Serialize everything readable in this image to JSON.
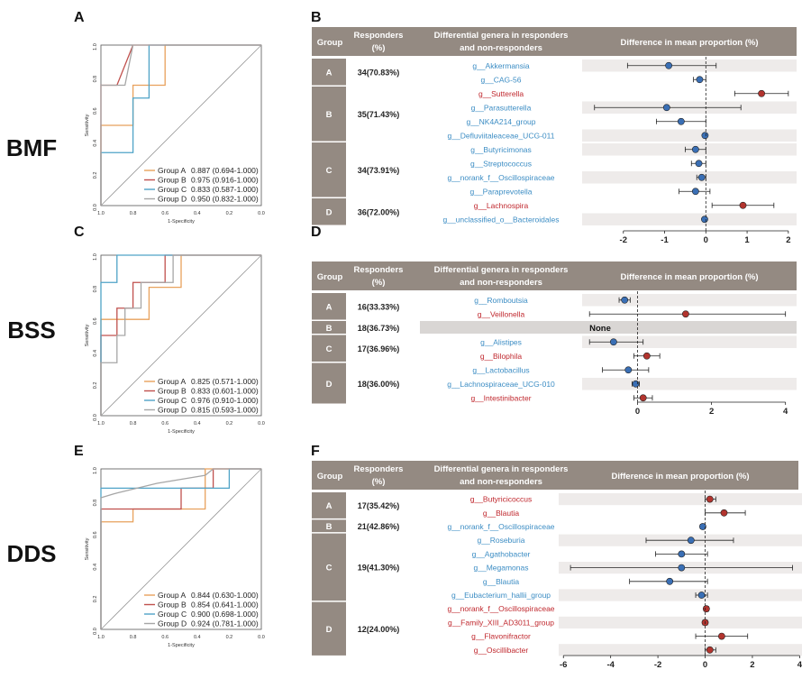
{
  "sections": [
    {
      "label": "BMF",
      "roc_letter": "A",
      "table_letter": "B",
      "roc": {
        "ylabel": "Sensitivity",
        "xlabel": "1-Specificity",
        "ticks": [
          "1.0",
          "0.8",
          "0.6",
          "0.4",
          "0.2",
          "0.0"
        ],
        "legend": [
          {
            "name": "Group A",
            "auc": "0.887 (0.694-1.000)",
            "color": "#E8A15C"
          },
          {
            "name": "Group B",
            "auc": "0.975 (0.916-1.000)",
            "color": "#C0504D"
          },
          {
            "name": "Group C",
            "auc": "0.833 (0.587-1.000)",
            "color": "#4FA3C7"
          },
          {
            "name": "Group D",
            "auc": "0.950 (0.832-1.000)",
            "color": "#A6A6A6"
          }
        ]
      },
      "table": {
        "headers": {
          "group": "Group",
          "responders_1": "Responders",
          "responders_2": "(%)",
          "genera_1": "Differential genera in responders",
          "genera_2": "and non-responders",
          "diff": "Difference in mean proportion (%)"
        },
        "groups": [
          {
            "name": "A",
            "responders": "34(70.83%)",
            "rows": [
              {
                "genus": "g__Akkermansia",
                "color": "blue",
                "est": -0.9,
                "lo": -1.9,
                "hi": 0.25
              },
              {
                "genus": "g__CAG-56",
                "color": "blue",
                "est": -0.15,
                "lo": -0.3,
                "hi": 0.0
              }
            ]
          },
          {
            "name": "B",
            "responders": "35(71.43%)",
            "rows": [
              {
                "genus": "g__Sutterella",
                "color": "red",
                "est": 1.35,
                "lo": 0.7,
                "hi": 2.0
              },
              {
                "genus": "g__Parasutterella",
                "color": "blue",
                "est": -0.95,
                "lo": -2.7,
                "hi": 0.85
              },
              {
                "genus": "g__NK4A214_group",
                "color": "blue",
                "est": -0.6,
                "lo": -1.2,
                "hi": 0.0
              },
              {
                "genus": "g__Defluviitaleaceae_UCG-011",
                "color": "blue",
                "est": -0.02,
                "lo": -0.06,
                "hi": 0.02
              }
            ]
          },
          {
            "name": "C",
            "responders": "34(73.91%)",
            "rows": [
              {
                "genus": "g__Butyricimonas",
                "color": "blue",
                "est": -0.25,
                "lo": -0.5,
                "hi": 0.0
              },
              {
                "genus": "g__Streptococcus",
                "color": "blue",
                "est": -0.17,
                "lo": -0.35,
                "hi": 0.0
              },
              {
                "genus": "g__norank_f__Oscillospiraceae",
                "color": "blue",
                "est": -0.1,
                "lo": -0.22,
                "hi": 0.0
              },
              {
                "genus": "g__Paraprevotella",
                "color": "blue",
                "est": -0.25,
                "lo": -0.65,
                "hi": 0.1
              }
            ]
          },
          {
            "name": "D",
            "responders": "36(72.00%)",
            "rows": [
              {
                "genus": "g__Lachnospira",
                "color": "red",
                "est": 0.9,
                "lo": 0.15,
                "hi": 1.65
              },
              {
                "genus": "g__unclassified_o__Bacteroidales",
                "color": "blue",
                "est": -0.03,
                "lo": -0.07,
                "hi": 0.01
              }
            ]
          }
        ],
        "x_ticks": [
          "-2",
          "-1",
          "0",
          "1",
          "2"
        ],
        "x_tick_values": [
          -2,
          -1,
          0,
          1,
          2
        ],
        "xlim": [
          -3,
          2.2
        ]
      }
    },
    {
      "label": "BSS",
      "roc_letter": "C",
      "table_letter": "D",
      "roc": {
        "ylabel": "Sensitivity",
        "xlabel": "1-Specificity",
        "ticks": [
          "1.0",
          "0.8",
          "0.6",
          "0.4",
          "0.2",
          "0.0"
        ],
        "legend": [
          {
            "name": "Group A",
            "auc": "0.825 (0.571-1.000)",
            "color": "#E8A15C"
          },
          {
            "name": "Group B",
            "auc": "0.833 (0.601-1.000)",
            "color": "#C0504D"
          },
          {
            "name": "Group C",
            "auc": "0.976 (0.910-1.000)",
            "color": "#4FA3C7"
          },
          {
            "name": "Group D",
            "auc": "0.815 (0.593-1.000)",
            "color": "#A6A6A6"
          }
        ]
      },
      "table": {
        "headers": {
          "group": "Group",
          "responders_1": "Responders",
          "responders_2": "(%)",
          "genera_1": "Differential genera in responders",
          "genera_2": "and non-responders",
          "diff": "Difference in mean proportion (%)"
        },
        "groups": [
          {
            "name": "A",
            "responders": "16(33.33%)",
            "rows": [
              {
                "genus": "g__Romboutsia",
                "color": "blue",
                "est": -0.35,
                "lo": -0.5,
                "hi": -0.2
              },
              {
                "genus": "g__Veillonella",
                "color": "red",
                "est": 1.3,
                "lo": -1.3,
                "hi": 4.0
              }
            ]
          },
          {
            "name": "B",
            "responders": "18(36.73%)",
            "none": "None",
            "rows": []
          },
          {
            "name": "C",
            "responders": "17(36.96%)",
            "rows": [
              {
                "genus": "g__Alistipes",
                "color": "blue",
                "est": -0.65,
                "lo": -1.3,
                "hi": 0.15
              },
              {
                "genus": "g__Bilophila",
                "color": "red",
                "est": 0.25,
                "lo": -0.1,
                "hi": 0.6
              }
            ]
          },
          {
            "name": "D",
            "responders": "18(36.00%)",
            "rows": [
              {
                "genus": "g__Lactobacillus",
                "color": "blue",
                "est": -0.25,
                "lo": -0.95,
                "hi": 0.3
              },
              {
                "genus": "g__Lachnospiraceae_UCG-010",
                "color": "blue",
                "est": -0.05,
                "lo": -0.15,
                "hi": 0.05
              },
              {
                "genus": "g__Intestinibacter",
                "color": "red",
                "est": 0.15,
                "lo": -0.1,
                "hi": 0.4
              }
            ]
          }
        ],
        "x_ticks": [
          "0",
          "2",
          "4"
        ],
        "x_tick_values": [
          0,
          2,
          4
        ],
        "xlim": [
          -1.5,
          4.3
        ]
      }
    },
    {
      "label": "DDS",
      "roc_letter": "E",
      "table_letter": "F",
      "roc": {
        "ylabel": "Sensitivity",
        "xlabel": "1-Specificity",
        "ticks": [
          "1.0",
          "0.8",
          "0.6",
          "0.4",
          "0.2",
          "0.0"
        ],
        "legend": [
          {
            "name": "Group A",
            "auc": "0.844 (0.630-1.000)",
            "color": "#E8A15C"
          },
          {
            "name": "Group B",
            "auc": "0.854 (0.641-1.000)",
            "color": "#C0504D"
          },
          {
            "name": "Group C",
            "auc": "0.900 (0.698-1.000)",
            "color": "#4FA3C7"
          },
          {
            "name": "Group D",
            "auc": "0.924 (0.781-1.000)",
            "color": "#A6A6A6"
          }
        ]
      },
      "table": {
        "headers": {
          "group": "Group",
          "responders_1": "Responders",
          "responders_2": "(%)",
          "genera_1": "Differential genera in responders",
          "genera_2": "and non-responders",
          "diff": "Difference in mean proportion (%)"
        },
        "groups": [
          {
            "name": "A",
            "responders": "17(35.42%)",
            "rows": [
              {
                "genus": "g__Butyricicoccus",
                "color": "red",
                "est": 0.2,
                "lo": 0.0,
                "hi": 0.45
              },
              {
                "genus": "g__Blautia",
                "color": "red",
                "est": 0.8,
                "lo": 0.0,
                "hi": 1.7
              }
            ]
          },
          {
            "name": "B",
            "responders": "21(42.86%)",
            "rows": [
              {
                "genus": "g__norank_f__Oscillospiraceae",
                "color": "blue",
                "est": -0.1,
                "lo": -0.2,
                "hi": 0.0
              }
            ]
          },
          {
            "name": "C",
            "responders": "19(41.30%)",
            "rows": [
              {
                "genus": "g__Roseburia",
                "color": "blue",
                "est": -0.6,
                "lo": -2.5,
                "hi": 1.2
              },
              {
                "genus": "g__Agathobacter",
                "color": "blue",
                "est": -1.0,
                "lo": -2.1,
                "hi": 0.1
              },
              {
                "genus": "g__Megamonas",
                "color": "blue",
                "est": -1.0,
                "lo": -5.7,
                "hi": 3.7
              },
              {
                "genus": "g__Blautia",
                "color": "blue",
                "est": -1.5,
                "lo": -3.2,
                "hi": 0.1
              },
              {
                "genus": "g__Eubacterium_hallii_group",
                "color": "blue",
                "est": -0.15,
                "lo": -0.4,
                "hi": 0.1
              }
            ]
          },
          {
            "name": "D",
            "responders": "12(24.00%)",
            "rows": [
              {
                "genus": "g__norank_f__Oscillospiraceae",
                "color": "red",
                "est": 0.05,
                "lo": -0.05,
                "hi": 0.15
              },
              {
                "genus": "g__Family_XIII_AD3011_group",
                "color": "red",
                "est": 0.0,
                "lo": -0.1,
                "hi": 0.1
              },
              {
                "genus": "g__Flavonifractor",
                "color": "red",
                "est": 0.7,
                "lo": -0.4,
                "hi": 1.8
              },
              {
                "genus": "g__Oscillibacter",
                "color": "red",
                "est": 0.2,
                "lo": 0.0,
                "hi": 0.45
              }
            ]
          }
        ],
        "x_ticks": [
          "-6",
          "-4",
          "-2",
          "0",
          "2",
          "4"
        ],
        "x_tick_values": [
          -6,
          -4,
          -2,
          0,
          2,
          4
        ],
        "xlim": [
          -6.2,
          4.1
        ]
      }
    }
  ],
  "chart_data": [
    {
      "type": "line",
      "panel": "A",
      "ylabel": "Sensitivity",
      "xlabel": "1-Specificity",
      "series": [
        {
          "name": "Group A 0.887 (0.694-1.000)",
          "points": [
            [
              0,
              0
            ],
            [
              0,
              0.5
            ],
            [
              0.2,
              0.5
            ],
            [
              0.2,
              0.75
            ],
            [
              0.4,
              0.75
            ],
            [
              0.4,
              1
            ],
            [
              0.6,
              1
            ],
            [
              1,
              1
            ]
          ]
        },
        {
          "name": "Group B 0.975 (0.916-1.000)",
          "points": [
            [
              0,
              0
            ],
            [
              0,
              0.75
            ],
            [
              0.1,
              0.75
            ],
            [
              0.2,
              1
            ],
            [
              1,
              1
            ]
          ]
        },
        {
          "name": "Group C 0.833 (0.587-1.000)",
          "points": [
            [
              0,
              0
            ],
            [
              0,
              0.33
            ],
            [
              0.2,
              0.33
            ],
            [
              0.2,
              0.67
            ],
            [
              0.3,
              0.67
            ],
            [
              0.3,
              1
            ],
            [
              1,
              1
            ]
          ]
        },
        {
          "name": "Group D 0.950 (0.832-1.000)",
          "points": [
            [
              0,
              0
            ],
            [
              0,
              0.75
            ],
            [
              0.15,
              0.75
            ],
            [
              0.2,
              1
            ],
            [
              1,
              1
            ]
          ]
        }
      ]
    },
    {
      "type": "line",
      "panel": "C",
      "ylabel": "Sensitivity",
      "xlabel": "1-Specificity",
      "series": [
        {
          "name": "Group A 0.825 (0.571-1.000)",
          "points": [
            [
              0,
              0
            ],
            [
              0,
              0.6
            ],
            [
              0.3,
              0.6
            ],
            [
              0.3,
              0.8
            ],
            [
              0.5,
              0.8
            ],
            [
              0.5,
              1
            ],
            [
              1,
              1
            ]
          ]
        },
        {
          "name": "Group B 0.833 (0.601-1.000)",
          "points": [
            [
              0,
              0
            ],
            [
              0,
              0.5
            ],
            [
              0.1,
              0.5
            ],
            [
              0.1,
              0.67
            ],
            [
              0.2,
              0.67
            ],
            [
              0.2,
              0.83
            ],
            [
              0.4,
              0.83
            ],
            [
              0.4,
              1
            ],
            [
              1,
              1
            ]
          ]
        },
        {
          "name": "Group C 0.976 (0.910-1.000)",
          "points": [
            [
              0,
              0
            ],
            [
              0,
              0.83
            ],
            [
              0.1,
              0.83
            ],
            [
              0.1,
              1
            ],
            [
              1,
              1
            ]
          ]
        },
        {
          "name": "Group D 0.815 (0.593-1.000)",
          "points": [
            [
              0,
              0
            ],
            [
              0,
              0.33
            ],
            [
              0.1,
              0.33
            ],
            [
              0.1,
              0.5
            ],
            [
              0.15,
              0.5
            ],
            [
              0.15,
              0.67
            ],
            [
              0.25,
              0.67
            ],
            [
              0.25,
              0.83
            ],
            [
              0.45,
              0.83
            ],
            [
              0.45,
              1
            ],
            [
              1,
              1
            ]
          ]
        }
      ]
    },
    {
      "type": "line",
      "panel": "E",
      "ylabel": "Sensitivity",
      "xlabel": "1-Specificity",
      "series": [
        {
          "name": "Group A 0.844 (0.630-1.000)",
          "points": [
            [
              0,
              0
            ],
            [
              0,
              0.67
            ],
            [
              0.2,
              0.67
            ],
            [
              0.2,
              0.75
            ],
            [
              0.65,
              0.75
            ],
            [
              0.65,
              1
            ],
            [
              1,
              1
            ]
          ]
        },
        {
          "name": "Group B 0.854 (0.641-1.000)",
          "points": [
            [
              0,
              0
            ],
            [
              0,
              0.75
            ],
            [
              0.5,
              0.75
            ],
            [
              0.5,
              0.88
            ],
            [
              0.7,
              0.88
            ],
            [
              0.7,
              1
            ],
            [
              1,
              1
            ]
          ]
        },
        {
          "name": "Group C 0.900 (0.698-1.000)",
          "points": [
            [
              0,
              0
            ],
            [
              0,
              0.88
            ],
            [
              0.8,
              0.88
            ],
            [
              0.8,
              1
            ],
            [
              1,
              1
            ]
          ]
        },
        {
          "name": "Group D 0.924 (0.781-1.000)",
          "points": [
            [
              0,
              0
            ],
            [
              0,
              0.82
            ],
            [
              0.1,
              0.85
            ],
            [
              0.35,
              0.91
            ],
            [
              0.65,
              0.96
            ],
            [
              0.7,
              1
            ],
            [
              1,
              1
            ]
          ]
        }
      ]
    }
  ]
}
